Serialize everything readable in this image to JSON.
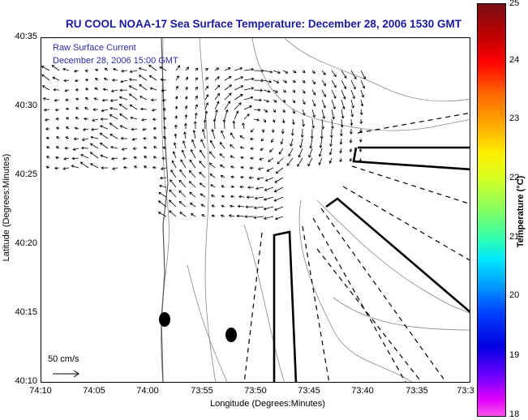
{
  "title": "RU COOL  NOAA-17  Sea Surface Temperature:  December 28, 2006 1530 GMT",
  "inset": {
    "line1": "Raw Surface Current",
    "line2": "December 28, 2006 15:00 GMT",
    "scale": "50 cm/s"
  },
  "axes": {
    "xlabel": "Longitude (Degrees:Minutes)",
    "ylabel": "Latitude (Degrees:Minutes)",
    "xticks": [
      "74:10",
      "74:05",
      "74:00",
      "73:55",
      "73:50",
      "73:45",
      "73:40",
      "73:35",
      "73:3"
    ],
    "yticks": [
      "40:35",
      "40:30",
      "40:25",
      "40:20",
      "40:15",
      "40:10"
    ]
  },
  "colorbar": {
    "label": "Temperature (°C)",
    "ticks": [
      "25",
      "24",
      "23",
      "22",
      "21",
      "20",
      "19",
      "18"
    ]
  },
  "map": {
    "xlim": [
      -74.1667,
      -73.5
    ],
    "ylim": [
      40.1667,
      40.5833
    ],
    "markers": [
      {
        "lon": -73.98,
        "lat": 40.245
      },
      {
        "lon": -73.905,
        "lat": 40.225
      }
    ]
  }
}
